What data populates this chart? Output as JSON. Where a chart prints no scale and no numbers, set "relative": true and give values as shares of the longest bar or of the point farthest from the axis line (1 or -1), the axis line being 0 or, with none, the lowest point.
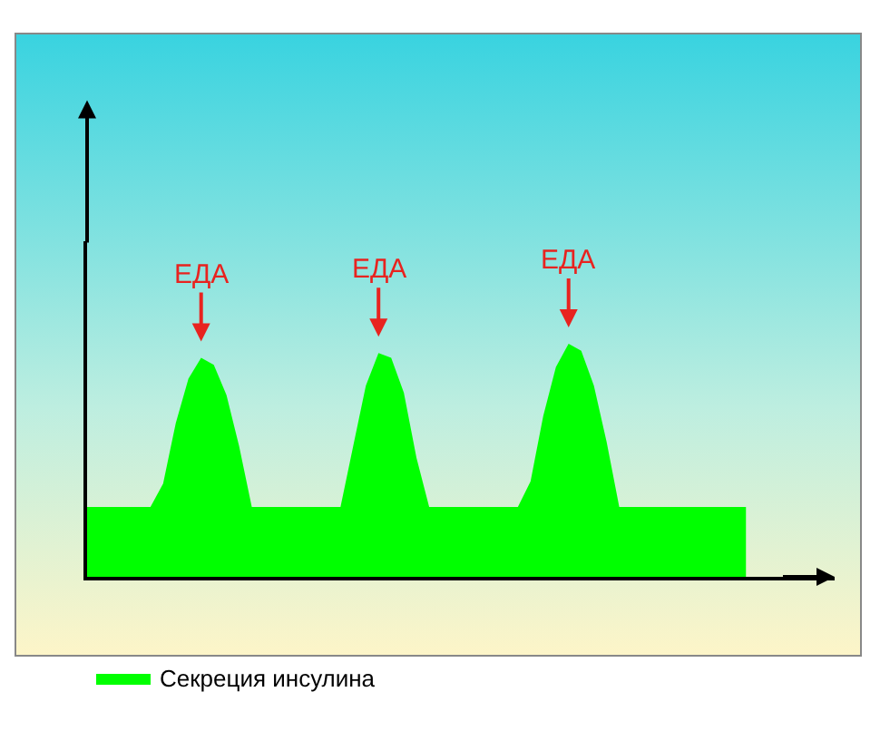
{
  "chart_data": {
    "type": "area",
    "relative": true,
    "legend": "bottom left",
    "categories": [
      null,
      null,
      null,
      null,
      null,
      null,
      null,
      null,
      null,
      null,
      null,
      null,
      null,
      null,
      null,
      null,
      null,
      null,
      null,
      null,
      null,
      null,
      null,
      null,
      null,
      null,
      null,
      null,
      null,
      null,
      null,
      null,
      null,
      null,
      null,
      null,
      null,
      null,
      null,
      null,
      null,
      null,
      null,
      null,
      null,
      null,
      null,
      null,
      null,
      null,
      null,
      null,
      null,
      null,
      null,
      null,
      null,
      null,
      null,
      null
    ],
    "series": [
      {
        "name": "Секреция инсулина",
        "color": "#00ff00",
        "values": [
          0.3,
          0.3,
          0.3,
          0.3,
          0.3,
          0.3,
          0.4,
          0.66,
          0.85,
          0.94,
          0.91,
          0.78,
          0.56,
          0.3,
          0.3,
          0.3,
          0.3,
          0.3,
          0.3,
          0.3,
          0.3,
          0.56,
          0.82,
          0.96,
          0.94,
          0.79,
          0.51,
          0.3,
          0.3,
          0.3,
          0.3,
          0.3,
          0.3,
          0.3,
          0.3,
          0.41,
          0.69,
          0.9,
          1.0,
          0.97,
          0.82,
          0.58,
          0.3,
          0.3,
          0.3,
          0.3,
          0.3,
          0.3,
          0.3,
          0.3,
          0.3,
          0.3,
          0.3,
          null,
          null,
          null,
          null,
          null,
          null,
          null
        ]
      }
    ],
    "annotations": [
      "ЕДА",
      "ЕДА",
      "ЕДА"
    ]
  }
}
